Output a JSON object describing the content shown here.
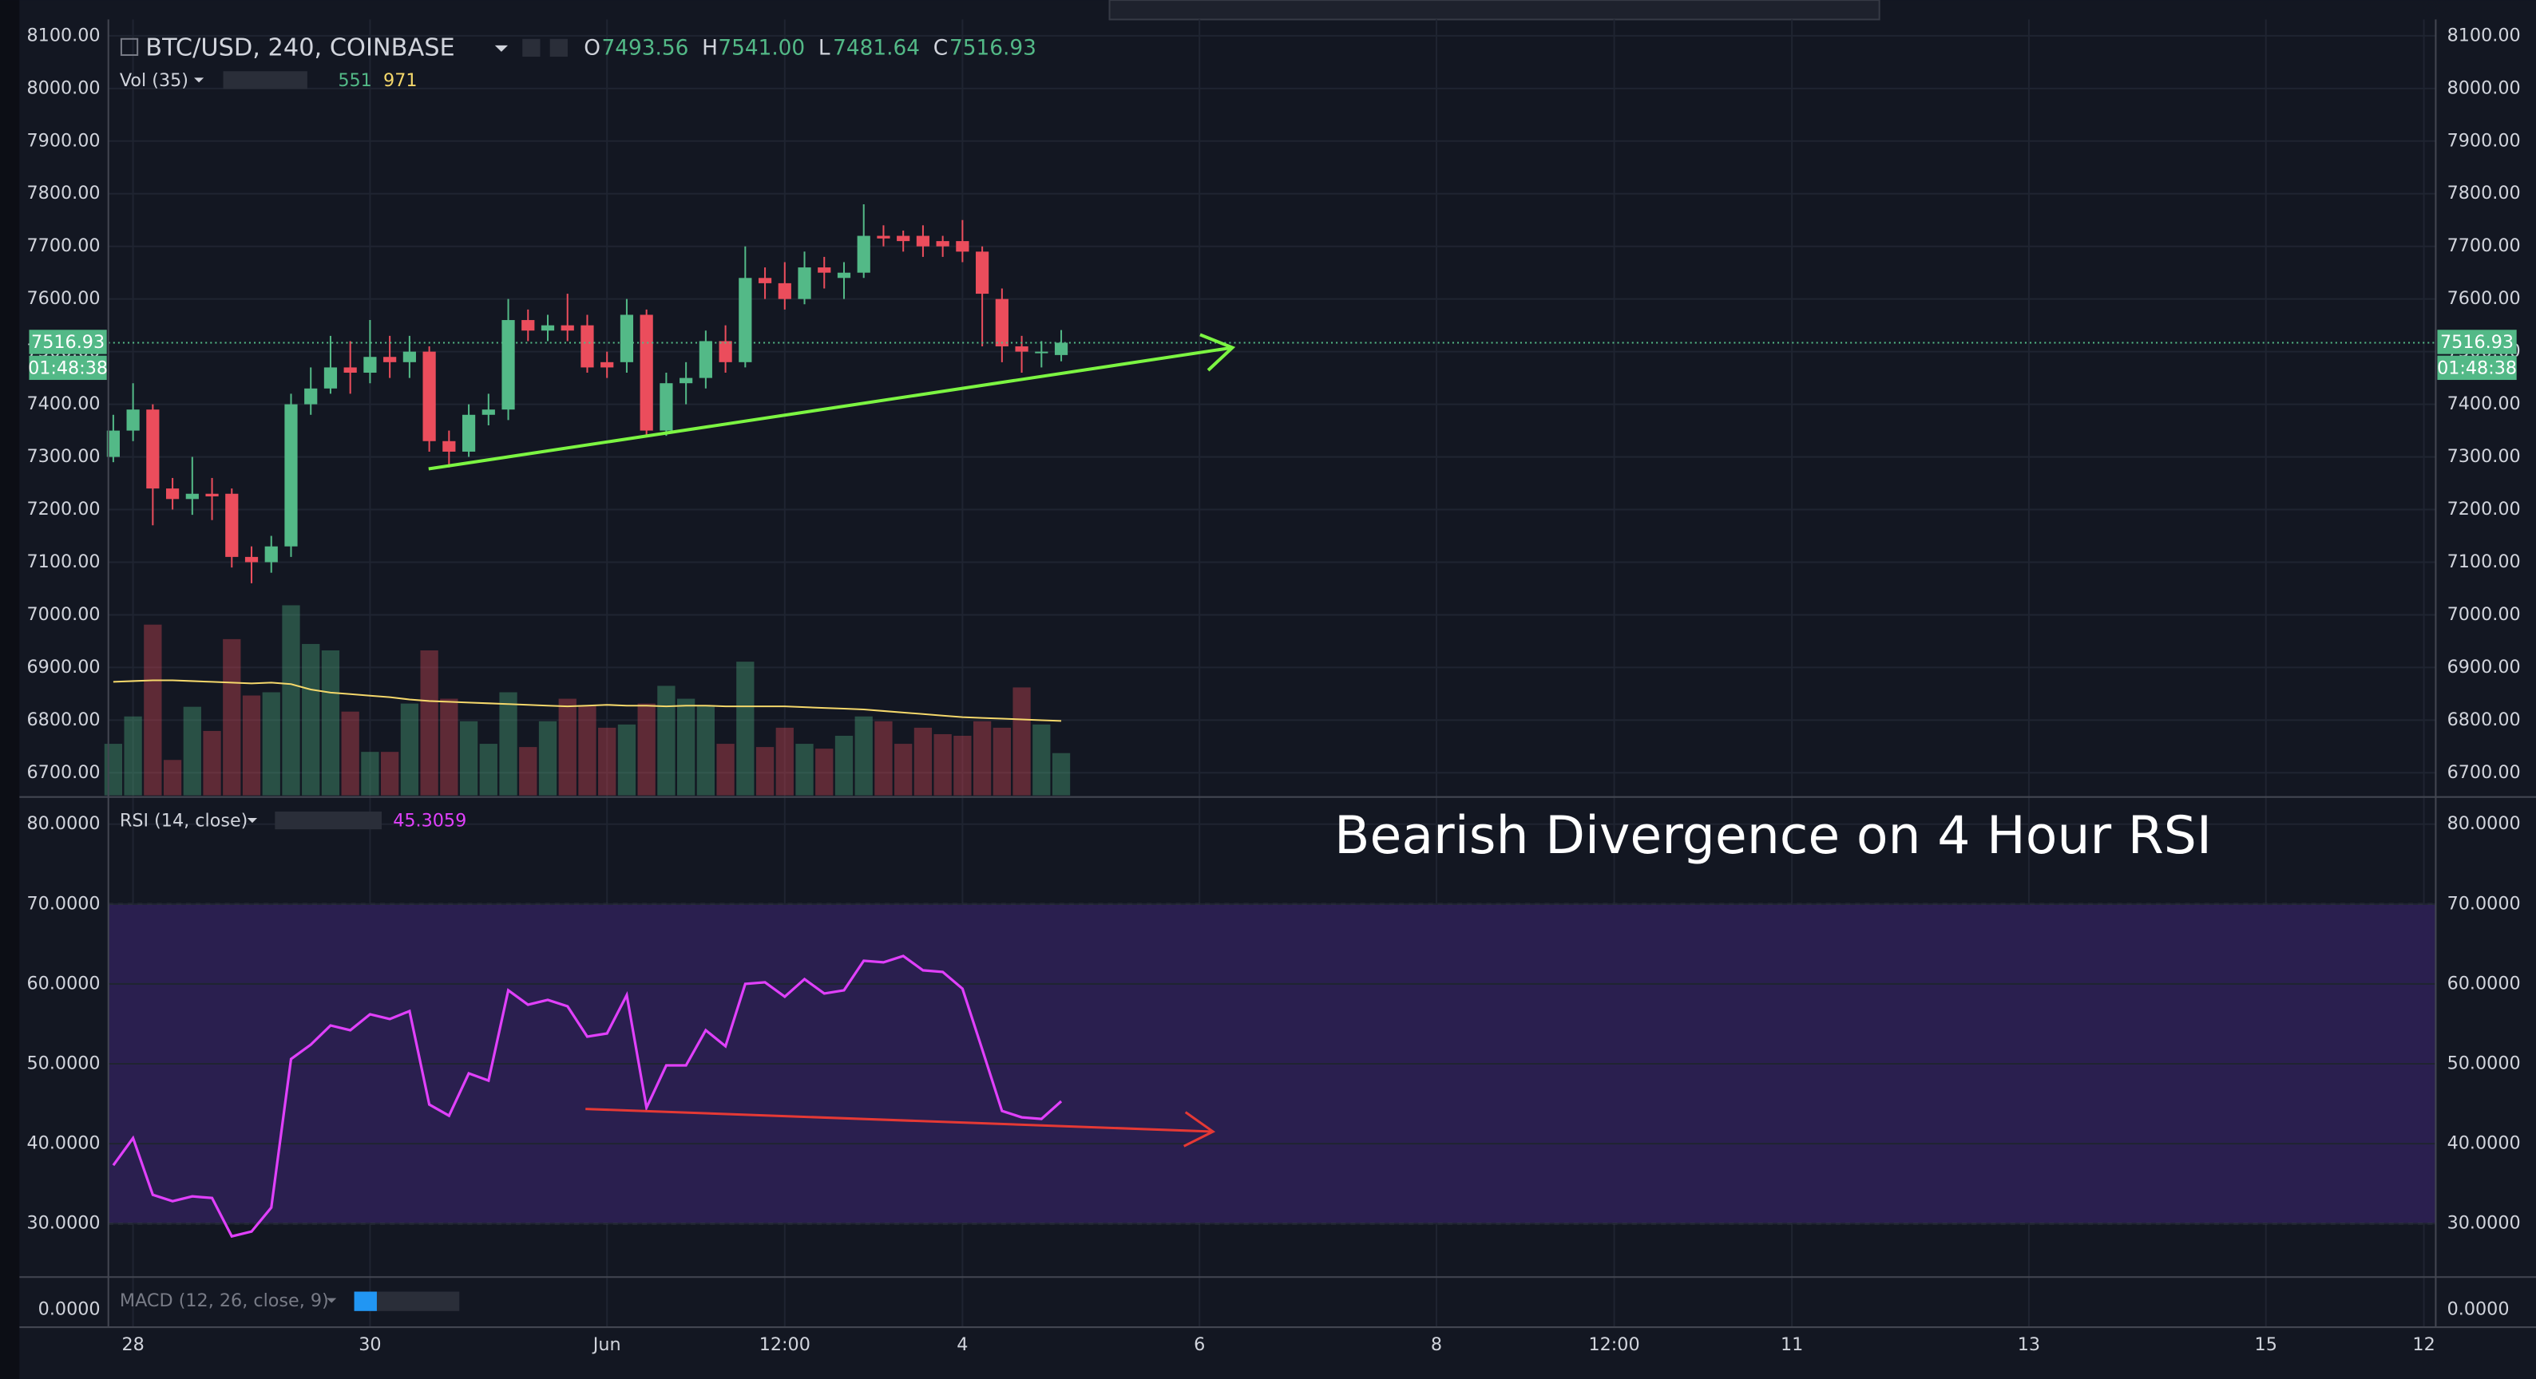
{
  "chart_data": [
    {
      "type": "candlestick",
      "title": "BTC/USD, 240, COINBASE",
      "last_bar_letters": [
        "O",
        "H",
        "L",
        "C"
      ],
      "last_bar_labels": [
        "7493.56",
        "7541.00",
        "7481.64",
        "7516.93"
      ],
      "countdown": "01:48:38",
      "up_color": "#53b987",
      "down_color": "#eb4d5c",
      "open": [
        7300,
        7350,
        7390,
        7240,
        7220,
        7230,
        7230,
        7110,
        7100,
        7130,
        7400,
        7430,
        7470,
        7460,
        7490,
        7480,
        7500,
        7330,
        7310,
        7380,
        7390,
        7560,
        7540,
        7550,
        7550,
        7480,
        7480,
        7570,
        7350,
        7440,
        7450,
        7520,
        7480,
        7640,
        7630,
        7600,
        7660,
        7640,
        7650,
        7720,
        7720,
        7720,
        7710,
        7710,
        7690,
        7600,
        7510,
        7500,
        7493.56
      ],
      "high": [
        7380,
        7440,
        7400,
        7260,
        7300,
        7260,
        7240,
        7130,
        7150,
        7420,
        7470,
        7530,
        7520,
        7560,
        7530,
        7530,
        7510,
        7350,
        7400,
        7420,
        7600,
        7580,
        7570,
        7610,
        7570,
        7500,
        7600,
        7580,
        7460,
        7480,
        7540,
        7550,
        7700,
        7660,
        7670,
        7690,
        7680,
        7670,
        7780,
        7740,
        7730,
        7740,
        7720,
        7750,
        7700,
        7620,
        7530,
        7520,
        7541
      ],
      "low": [
        7290,
        7330,
        7170,
        7200,
        7190,
        7180,
        7090,
        7060,
        7080,
        7110,
        7380,
        7420,
        7420,
        7440,
        7450,
        7450,
        7310,
        7280,
        7300,
        7360,
        7370,
        7520,
        7520,
        7520,
        7460,
        7450,
        7460,
        7340,
        7340,
        7400,
        7430,
        7460,
        7470,
        7600,
        7580,
        7590,
        7620,
        7600,
        7640,
        7700,
        7690,
        7680,
        7680,
        7670,
        7510,
        7480,
        7460,
        7470,
        7481.64
      ],
      "close": [
        7350,
        7390,
        7240,
        7220,
        7230,
        7225,
        7110,
        7100,
        7130,
        7400,
        7430,
        7470,
        7460,
        7490,
        7480,
        7500,
        7330,
        7310,
        7380,
        7390,
        7560,
        7540,
        7550,
        7540,
        7470,
        7470,
        7570,
        7350,
        7440,
        7450,
        7520,
        7480,
        7640,
        7630,
        7600,
        7660,
        7650,
        7650,
        7720,
        7715,
        7710,
        7700,
        7700,
        7690,
        7610,
        7510,
        7500,
        7500,
        7516.93
      ],
      "volume": {
        "title": "Vol (35)",
        "ma_color": "#f5d86b",
        "values": [
          672,
          1029,
          2226,
          462,
          1155,
          840,
          2037,
          1302,
          1344,
          2478,
          1974,
          1890,
          1092,
          567,
          567,
          1197,
          1890,
          1260,
          966,
          672,
          1344,
          630,
          966,
          1260,
          1176,
          882,
          924,
          1197,
          1428,
          1260,
          1176,
          672,
          1743,
          630,
          882,
          672,
          609,
          777,
          1029,
          966,
          672,
          882,
          798,
          777,
          966,
          882,
          1407,
          924,
          551
        ],
        "ma": [
          1480,
          1490,
          1500,
          1500,
          1490,
          1480,
          1470,
          1460,
          1470,
          1450,
          1380,
          1340,
          1320,
          1300,
          1280,
          1250,
          1230,
          1220,
          1210,
          1200,
          1190,
          1180,
          1170,
          1160,
          1170,
          1180,
          1170,
          1170,
          1160,
          1170,
          1170,
          1160,
          1160,
          1160,
          1160,
          1150,
          1140,
          1130,
          1120,
          1100,
          1080,
          1060,
          1040,
          1020,
          1010,
          1000,
          990,
          980,
          971
        ]
      },
      "ylim": [
        6657,
        8131
      ],
      "yticks": [
        {
          "value": 6700,
          "label": "6700.00"
        },
        {
          "value": 6800,
          "label": "6800.00"
        },
        {
          "value": 6900,
          "label": "6900.00"
        },
        {
          "value": 7000,
          "label": "7000.00"
        },
        {
          "value": 7100,
          "label": "7100.00"
        },
        {
          "value": 7200,
          "label": "7200.00"
        },
        {
          "value": 7300,
          "label": "7300.00"
        },
        {
          "value": 7400,
          "label": "7400.00"
        },
        {
          "value": 7500,
          "label": "7500.00"
        },
        {
          "value": 7600,
          "label": "7600.00"
        },
        {
          "value": 7700,
          "label": "7700.00"
        },
        {
          "value": 7800,
          "label": "7800.00"
        },
        {
          "value": 7900,
          "label": "7900.00"
        },
        {
          "value": 8000,
          "label": "8000.00"
        },
        {
          "value": 8100,
          "label": "8100.00"
        }
      ],
      "xlim": [
        -0.25,
        117.6
      ],
      "xticks": [
        {
          "value": 1,
          "label": "28"
        },
        {
          "value": 13,
          "label": "30"
        },
        {
          "value": 25,
          "label": "Jun"
        },
        {
          "value": 34,
          "label": "12:00"
        },
        {
          "value": 43,
          "label": "4"
        },
        {
          "value": 55,
          "label": "6"
        },
        {
          "value": 67,
          "label": "8"
        },
        {
          "value": 76,
          "label": "12:00"
        },
        {
          "value": 85,
          "label": "11"
        },
        {
          "value": 97,
          "label": "13"
        },
        {
          "value": 109,
          "label": "15"
        },
        {
          "value": 117,
          "label": "12"
        }
      ],
      "grid": true
    },
    {
      "type": "line",
      "title": "RSI (14, close)",
      "annotation": "Bearish Divergence on 4 Hour RSI",
      "color": "#e040fb",
      "band_color": "#2a1f4f",
      "band_lim": [
        30,
        70
      ],
      "values": [
        37.3,
        40.7,
        33.6,
        32.8,
        33.4,
        33.2,
        28.4,
        29.0,
        32.0,
        50.6,
        52.4,
        54.8,
        54.2,
        56.2,
        55.6,
        56.6,
        44.9,
        43.5,
        48.8,
        47.9,
        59.2,
        57.4,
        58.0,
        57.2,
        53.4,
        53.8,
        58.6,
        44.5,
        49.8,
        49.8,
        54.2,
        52.2,
        60.0,
        60.2,
        58.4,
        60.6,
        58.8,
        59.2,
        62.9,
        62.7,
        63.5,
        61.7,
        61.5,
        59.4,
        51.8,
        44.1,
        43.3,
        43.1,
        45.3059
      ],
      "ylim": [
        23.3,
        83.2
      ],
      "yticks": [
        {
          "value": 30,
          "label": "30.0000"
        },
        {
          "value": 40,
          "label": "40.0000"
        },
        {
          "value": 50,
          "label": "50.0000"
        },
        {
          "value": 60,
          "label": "60.0000"
        },
        {
          "value": 70,
          "label": "70.0000"
        },
        {
          "value": 80,
          "label": "80.0000"
        }
      ],
      "grid": true
    },
    {
      "type": "header",
      "title": "MACD (12, 26, close, 9)",
      "ytick_label": "0.0000"
    }
  ]
}
